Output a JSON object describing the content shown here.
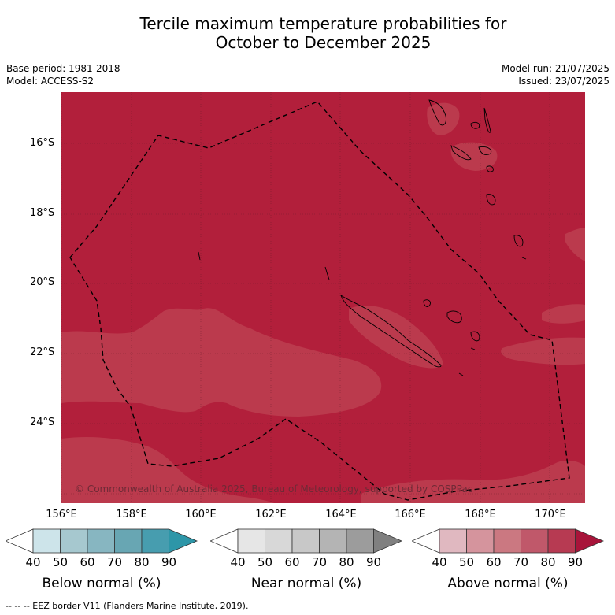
{
  "title_line1": "Tercile maximum temperature probabilities for",
  "title_line2": "October to December 2025",
  "base_period": "Base period: 1981-2018",
  "model": "Model: ACCESS-S2",
  "model_run": "Model run: 21/07/2025",
  "issued": "Issued: 23/07/2025",
  "copyright": "© Commonwealth of Australia 2025, Bureau of Meteorology, supported by COSPPac",
  "footer": "--  --  -- EEZ border V11 (Flanders Marine Institute, 2019).",
  "map": {
    "lat_labels": [
      "16°S",
      "18°S",
      "20°S",
      "22°S",
      "24°S"
    ],
    "lon_labels": [
      "156°E",
      "158°E",
      "160°E",
      "162°E",
      "164°E",
      "166°E",
      "168°E",
      "170°E"
    ],
    "lon_range": [
      154.5,
      171.0
    ],
    "lat_range": [
      -26.0,
      -14.2
    ],
    "dominant_category": "Above normal",
    "dominant_band": "80-90",
    "secondary_band": "70-80",
    "colors": {
      "above_80_90": "#b21f3b",
      "above_70_80": "#bb3a4d",
      "land_outline": "#000000",
      "eez_border": "#000000"
    }
  },
  "colorbars": [
    {
      "name": "Below normal (%)",
      "ticks": [
        "40",
        "50",
        "60",
        "70",
        "80",
        "90"
      ],
      "colors": [
        "#ffffff",
        "#cde4ea",
        "#a6c8cf",
        "#87b6c1",
        "#68a6b3",
        "#479daf",
        "#2d96a8"
      ]
    },
    {
      "name": "Near normal (%)",
      "ticks": [
        "40",
        "50",
        "60",
        "70",
        "80",
        "90"
      ],
      "colors": [
        "#ffffff",
        "#e6e6e6",
        "#d8d8d8",
        "#c8c8c8",
        "#b4b4b4",
        "#9c9c9c",
        "#808080"
      ]
    },
    {
      "name": "Above normal (%)",
      "ticks": [
        "40",
        "50",
        "60",
        "70",
        "80",
        "90"
      ],
      "colors": [
        "#ffffff",
        "#e0b8c0",
        "#d5949d",
        "#cb7881",
        "#c0586a",
        "#b73a52",
        "#a8143a"
      ]
    }
  ]
}
